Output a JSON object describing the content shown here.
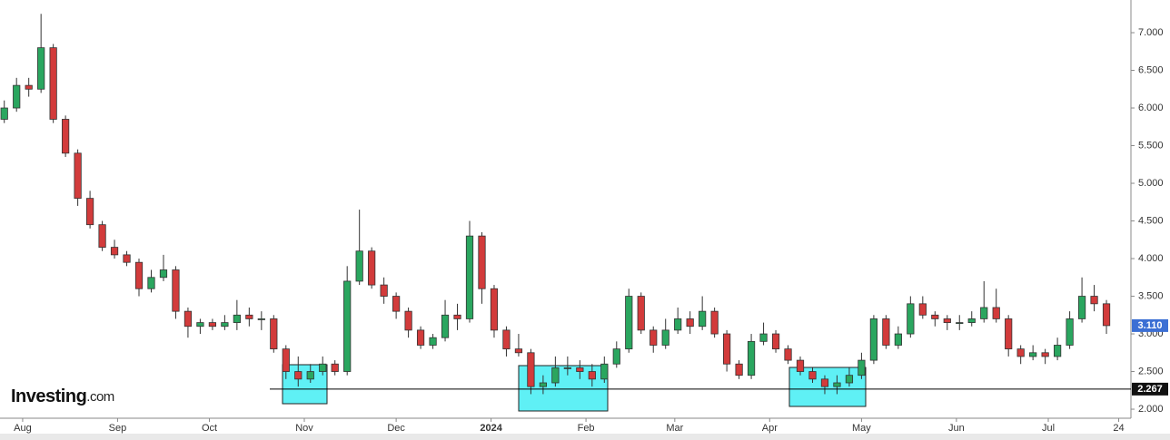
{
  "brand": {
    "name": "Investing",
    "suffix": ".com"
  },
  "chart_data": {
    "type": "candlestick",
    "up_color": "#2aa65f",
    "down_color": "#d23b3b",
    "support_level": 2.267,
    "last_price": {
      "value": 3.11,
      "label": "3.110"
    },
    "last_price_color": "#3b6fd4",
    "xlim": [
      -7.4,
      362
    ],
    "ylim": [
      1.88,
      7.434
    ],
    "xticks": [
      {
        "value": 0,
        "label": "Aug"
      },
      {
        "value": 31,
        "label": "Sep"
      },
      {
        "value": 61,
        "label": "Oct"
      },
      {
        "value": 92,
        "label": "Nov"
      },
      {
        "value": 122,
        "label": "Dec"
      },
      {
        "value": 153,
        "label": "2024"
      },
      {
        "value": 184,
        "label": "Feb"
      },
      {
        "value": 213,
        "label": "Mar"
      },
      {
        "value": 244,
        "label": "Apr"
      },
      {
        "value": 274,
        "label": "May"
      },
      {
        "value": 305,
        "label": "Jun"
      },
      {
        "value": 335,
        "label": "Jul"
      },
      {
        "value": 358,
        "label": "24"
      }
    ],
    "yticks": [
      {
        "value": 2,
        "label": "2.000"
      },
      {
        "value": 2.5,
        "label": "2.500"
      },
      {
        "value": 3,
        "label": "3.000"
      },
      {
        "value": 3.5,
        "label": "3.500"
      },
      {
        "value": 4,
        "label": "4.000"
      },
      {
        "value": 4.5,
        "label": "4.500"
      },
      {
        "value": 5,
        "label": "5.000"
      },
      {
        "value": 5.5,
        "label": "5.500"
      },
      {
        "value": 6,
        "label": "6.000"
      },
      {
        "value": 6.5,
        "label": "6.500"
      },
      {
        "value": 7,
        "label": "7.000"
      }
    ],
    "x": [
      -6,
      -2,
      2,
      6,
      10,
      14,
      18,
      22,
      26,
      30,
      34,
      38,
      42,
      46,
      50,
      54,
      58,
      62,
      66,
      70,
      74,
      78,
      82,
      86,
      90,
      94,
      98,
      102,
      106,
      110,
      114,
      118,
      122,
      126,
      130,
      134,
      138,
      142,
      146,
      150,
      154,
      158,
      162,
      166,
      170,
      174,
      178,
      182,
      186,
      190,
      194,
      198,
      202,
      206,
      210,
      214,
      218,
      222,
      226,
      230,
      234,
      238,
      242,
      246,
      250,
      254,
      258,
      262,
      266,
      270,
      274,
      278,
      282,
      286,
      290,
      294,
      298,
      302,
      306,
      310,
      314,
      318,
      322,
      326,
      330,
      334,
      338,
      342,
      346,
      350,
      354
    ],
    "open": [
      5.85,
      6.0,
      6.3,
      6.25,
      6.8,
      5.85,
      5.4,
      4.8,
      4.45,
      4.15,
      4.05,
      3.95,
      3.6,
      3.75,
      3.85,
      3.3,
      3.1,
      3.15,
      3.1,
      3.15,
      3.25,
      3.2,
      3.2,
      2.8,
      2.5,
      2.4,
      2.5,
      2.6,
      2.5,
      3.7,
      4.1,
      3.65,
      3.5,
      3.3,
      3.05,
      2.85,
      2.95,
      3.25,
      3.2,
      4.3,
      3.6,
      3.05,
      2.8,
      2.75,
      2.3,
      2.35,
      2.55,
      2.55,
      2.5,
      2.4,
      2.6,
      2.8,
      3.5,
      3.05,
      2.85,
      3.05,
      3.2,
      3.1,
      3.3,
      3.0,
      2.6,
      2.45,
      2.9,
      3.0,
      2.8,
      2.65,
      2.5,
      2.4,
      2.3,
      2.35,
      2.45,
      2.65,
      3.2,
      2.85,
      3.0,
      3.4,
      3.25,
      3.2,
      3.15,
      3.15,
      3.2,
      3.35,
      3.2,
      2.8,
      2.7,
      2.75,
      2.7,
      2.85,
      3.2,
      3.5,
      3.4
    ],
    "high": [
      6.1,
      6.4,
      6.4,
      7.25,
      6.85,
      5.9,
      5.45,
      4.9,
      4.5,
      4.25,
      4.1,
      4.0,
      3.85,
      4.05,
      3.9,
      3.35,
      3.2,
      3.2,
      3.25,
      3.45,
      3.35,
      3.3,
      3.25,
      2.85,
      2.7,
      2.6,
      2.7,
      2.65,
      3.9,
      4.65,
      4.15,
      3.75,
      3.55,
      3.35,
      3.1,
      3.0,
      3.45,
      3.4,
      4.5,
      4.35,
      3.65,
      3.1,
      3.0,
      2.8,
      2.45,
      2.7,
      2.7,
      2.65,
      2.6,
      2.7,
      2.9,
      3.6,
      3.55,
      3.1,
      3.2,
      3.35,
      3.3,
      3.5,
      3.35,
      3.05,
      2.65,
      3.0,
      3.15,
      3.05,
      2.85,
      2.7,
      2.55,
      2.45,
      2.45,
      2.55,
      2.75,
      3.25,
      3.25,
      3.1,
      3.5,
      3.5,
      3.3,
      3.25,
      3.25,
      3.3,
      3.7,
      3.6,
      3.25,
      2.85,
      2.85,
      2.8,
      2.95,
      3.3,
      3.75,
      3.65,
      3.45
    ],
    "low": [
      5.8,
      5.95,
      6.15,
      6.2,
      5.8,
      5.35,
      4.7,
      4.4,
      4.1,
      4.0,
      3.9,
      3.5,
      3.55,
      3.7,
      3.2,
      2.95,
      3.0,
      3.05,
      3.05,
      3.05,
      3.1,
      3.05,
      2.75,
      2.4,
      2.3,
      2.35,
      2.45,
      2.45,
      2.45,
      3.65,
      3.6,
      3.4,
      3.2,
      2.95,
      2.8,
      2.8,
      2.9,
      3.05,
      3.15,
      3.4,
      2.95,
      2.7,
      2.7,
      2.2,
      2.2,
      2.3,
      2.45,
      2.4,
      2.3,
      2.35,
      2.55,
      2.75,
      3.0,
      2.75,
      2.8,
      3.0,
      3.0,
      3.05,
      2.95,
      2.5,
      2.4,
      2.4,
      2.85,
      2.75,
      2.6,
      2.45,
      2.35,
      2.2,
      2.2,
      2.3,
      2.4,
      2.6,
      2.8,
      2.8,
      2.95,
      3.2,
      3.1,
      3.05,
      3.05,
      3.1,
      3.15,
      3.15,
      2.7,
      2.6,
      2.65,
      2.6,
      2.65,
      2.8,
      3.15,
      3.3,
      3.0
    ],
    "close": [
      6.0,
      6.3,
      6.25,
      6.8,
      5.85,
      5.4,
      4.8,
      4.45,
      4.15,
      4.05,
      3.95,
      3.6,
      3.75,
      3.85,
      3.3,
      3.1,
      3.15,
      3.1,
      3.15,
      3.25,
      3.2,
      3.2,
      2.8,
      2.5,
      2.4,
      2.5,
      2.6,
      2.5,
      3.7,
      4.1,
      3.65,
      3.5,
      3.3,
      3.05,
      2.85,
      2.95,
      3.25,
      3.2,
      4.3,
      3.6,
      3.05,
      2.8,
      2.75,
      2.3,
      2.35,
      2.55,
      2.55,
      2.5,
      2.4,
      2.6,
      2.8,
      3.5,
      3.05,
      2.85,
      3.05,
      3.2,
      3.1,
      3.3,
      3.0,
      2.6,
      2.45,
      2.9,
      3.0,
      2.8,
      2.65,
      2.5,
      2.4,
      2.3,
      2.35,
      2.45,
      2.65,
      3.2,
      2.85,
      3.0,
      3.4,
      3.25,
      3.2,
      3.15,
      3.15,
      3.2,
      3.35,
      3.2,
      2.8,
      2.7,
      2.75,
      2.7,
      2.85,
      3.2,
      3.5,
      3.4,
      3.11
    ]
  }
}
